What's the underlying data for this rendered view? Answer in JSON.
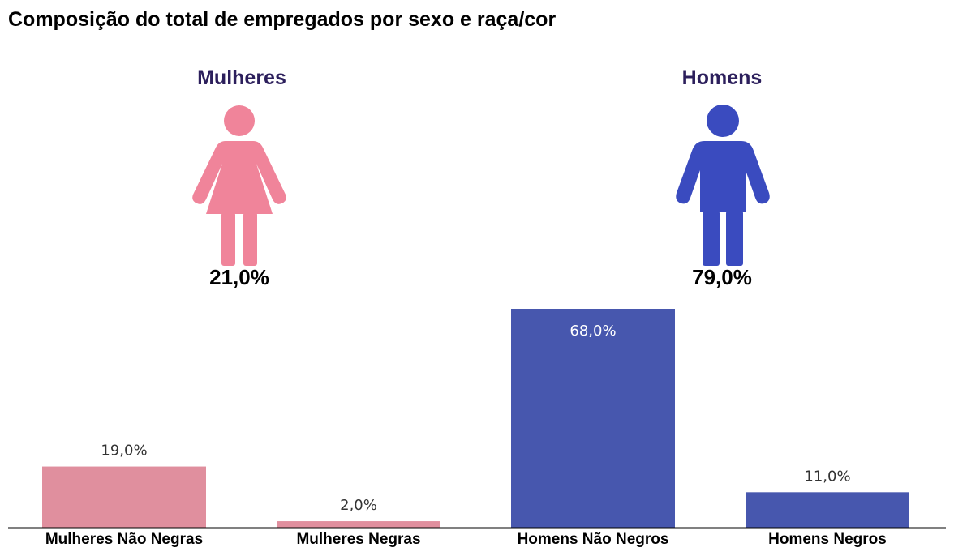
{
  "title": "Composição do total de empregados por sexo e raça/cor",
  "groups": {
    "women": {
      "label": "Mulheres",
      "percent": "21,0%",
      "color": "#f0849a"
    },
    "men": {
      "label": "Homens",
      "percent": "79,0%",
      "color": "#3a4bbf"
    }
  },
  "colors": {
    "women_bar": "#e08f9e",
    "men_bar": "#4757ae",
    "axis": "#000000"
  },
  "chart_data": {
    "type": "bar",
    "title": "Composição do total de empregados por sexo e raça/cor",
    "xlabel": "",
    "ylabel": "",
    "ylim": [
      0,
      70
    ],
    "grid": false,
    "categories": [
      "Mulheres Não Negras",
      "Mulheres Negras",
      "Homens Não Negros",
      "Homens Negros"
    ],
    "values": [
      19.0,
      2.0,
      68.0,
      11.0
    ],
    "data_labels": [
      "19,0%",
      "2,0%",
      "68,0%",
      "11,0%"
    ],
    "label_position": [
      "outside",
      "outside",
      "inside",
      "outside"
    ],
    "bar_groups": [
      "women",
      "women",
      "men",
      "men"
    ]
  }
}
